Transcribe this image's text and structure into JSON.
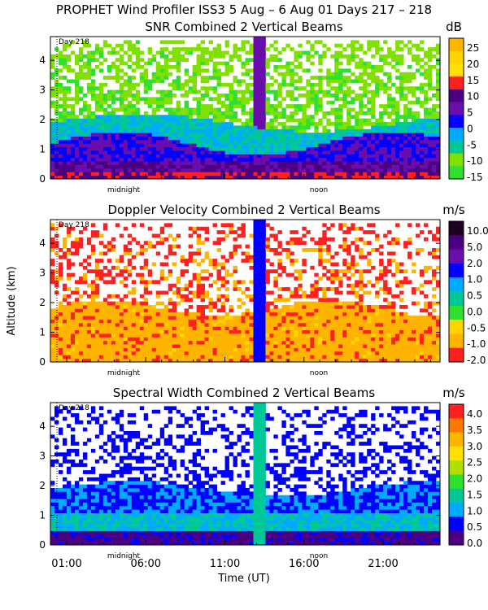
{
  "header": "PROPHET Wind Profiler ISS3    5 Aug –  6 Aug 01 Days 217 – 218",
  "shared": {
    "ylabel": "Altitude (km)",
    "xlabel": "Time (UT)",
    "day_marker": "Day 218",
    "midnight_label": "midnight",
    "noon_label": "noon",
    "xticks": [
      "01:00",
      "06:00",
      "11:00",
      "16:00",
      "21:00"
    ],
    "yticks": [
      "0",
      "1",
      "2",
      "3",
      "4"
    ]
  },
  "chart_data": [
    {
      "type": "heatmap",
      "title": "SNR Combined 2 Vertical Beams",
      "unit": "dB",
      "xlabel": "Time (UT)",
      "ylabel": "Altitude (km)",
      "ylim": [
        0,
        4.8
      ],
      "xlim_hours": [
        23.5,
        24.5
      ],
      "colorbar": {
        "ticks": [
          "25",
          "20",
          "15",
          "10",
          "5",
          "0",
          "-5",
          "-10",
          "-15"
        ],
        "colors": [
          "#ffb400",
          "#ffd400",
          "#ffe000",
          "#ff2020",
          "#4b0082",
          "#6a0dad",
          "#0000ff",
          "#00aaff",
          "#00c896",
          "#80e000",
          "#30e030"
        ]
      }
    },
    {
      "type": "heatmap",
      "title": "Doppler Velocity Combined 2 Vertical Beams",
      "unit": "m/s",
      "xlabel": "Time (UT)",
      "ylabel": "Altitude (km)",
      "ylim": [
        0,
        4.8
      ],
      "colorbar": {
        "ticks": [
          "10.0",
          "5.0",
          "2.0",
          "1.0",
          "0.5",
          "0.0",
          "-0.5",
          "-1.0",
          "-2.0"
        ],
        "colors": [
          "#200020",
          "#4b0082",
          "#6a0dad",
          "#0000ff",
          "#00aaff",
          "#00c896",
          "#30e030",
          "#ffd400",
          "#ffb400",
          "#ff2020"
        ]
      }
    },
    {
      "type": "heatmap",
      "title": "Spectral Width Combined 2 Vertical Beams",
      "unit": "m/s",
      "xlabel": "Time (UT)",
      "ylabel": "Altitude (km)",
      "ylim": [
        0,
        4.8
      ],
      "colorbar": {
        "ticks": [
          "4.0",
          "3.5",
          "3.0",
          "2.5",
          "2.0",
          "1.5",
          "1.0",
          "0.5",
          "0.0"
        ],
        "colors": [
          "#ff2020",
          "#ff7700",
          "#ffb400",
          "#ffe000",
          "#b0e000",
          "#30e030",
          "#00c896",
          "#00aaff",
          "#0000ff",
          "#4b0082"
        ]
      }
    }
  ]
}
